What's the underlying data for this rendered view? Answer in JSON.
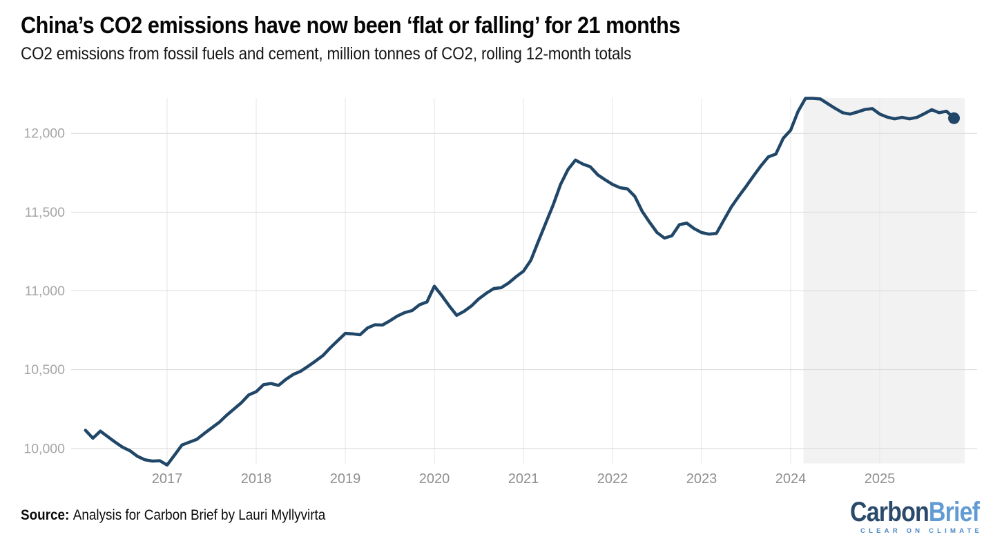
{
  "header": {
    "title": "China’s CO2 emissions have now been ‘flat or falling’ for 21 months",
    "subtitle": "CO2 emissions from fossil fuels and cement, million tonnes of CO2, rolling 12-month totals"
  },
  "footer": {
    "source_label": "Source:",
    "source_text": "Analysis for Carbon Brief by Lauri Myllyvirta"
  },
  "logo": {
    "part1": "Carbon",
    "part2": "Brief",
    "tagline": "CLEAR ON CLIMATE"
  },
  "colors": {
    "line": "#204668",
    "end_dot": "#204668",
    "highlight_shade": "#f2f2f2",
    "grid_horizontal": "#d9d9d9",
    "grid_vertical": "#e5e5e5",
    "y_tick_text": "#a5a5a5",
    "x_tick_text": "#8f8f8f",
    "title_text": "#060606",
    "logo_carbon": "#2b4a6b",
    "logo_brief": "#609bd4",
    "logo_tagline": "#4a87c6"
  },
  "chart_data": {
    "type": "line",
    "title": "China’s CO2 emissions have now been ‘flat or falling’ for 21 months",
    "subtitle": "CO2 emissions from fossil fuels and cement, million tonnes of CO2, rolling 12-month totals",
    "ylabel": "million tonnes of CO2, rolling 12-month totals",
    "xlabel": "",
    "legend": "none",
    "grid": "on",
    "x_start": "2016-02",
    "x_end": "2025-11",
    "frequency": "monthly",
    "values": [
      10115,
      10065,
      10110,
      10075,
      10040,
      10008,
      9985,
      9950,
      9928,
      9920,
      9922,
      9895,
      9958,
      10022,
      10040,
      10058,
      10095,
      10130,
      10165,
      10210,
      10250,
      10290,
      10340,
      10360,
      10405,
      10412,
      10400,
      10438,
      10470,
      10490,
      10522,
      10555,
      10590,
      10640,
      10685,
      10730,
      10727,
      10722,
      10765,
      10785,
      10783,
      10810,
      10840,
      10862,
      10875,
      10912,
      10930,
      11030,
      10970,
      10905,
      10845,
      10870,
      10905,
      10950,
      10985,
      11015,
      11020,
      11050,
      11090,
      11125,
      11195,
      11313,
      11430,
      11545,
      11676,
      11770,
      11830,
      11805,
      11788,
      11737,
      11705,
      11676,
      11655,
      11648,
      11600,
      11505,
      11435,
      11370,
      11335,
      11350,
      11420,
      11430,
      11395,
      11370,
      11360,
      11365,
      11450,
      11532,
      11600,
      11663,
      11730,
      11794,
      11851,
      11868,
      11969,
      12020,
      12140,
      12222,
      12222,
      12218,
      12188,
      12158,
      12131,
      12122,
      12136,
      12151,
      12157,
      12122,
      12103,
      12092,
      12101,
      12092,
      12101,
      12125,
      12150,
      12131,
      12140,
      12096
    ],
    "x_tick_labels": [
      "2017",
      "2018",
      "2019",
      "2020",
      "2021",
      "2022",
      "2023",
      "2024",
      "2025"
    ],
    "y_ticks": [
      {
        "value": 10000,
        "label": "10,000"
      },
      {
        "value": 10500,
        "label": "10,500"
      },
      {
        "value": 11000,
        "label": "11,000"
      },
      {
        "value": 11500,
        "label": "11,500"
      },
      {
        "value": 12000,
        "label": "12,000"
      }
    ],
    "ylim": [
      9880,
      12230
    ],
    "highlight_region": {
      "from": "2024-03",
      "to": "2025-11",
      "style": "light gray band"
    },
    "last_point": {
      "date": "2025-11",
      "value": 12096,
      "marker": "filled circle"
    }
  }
}
